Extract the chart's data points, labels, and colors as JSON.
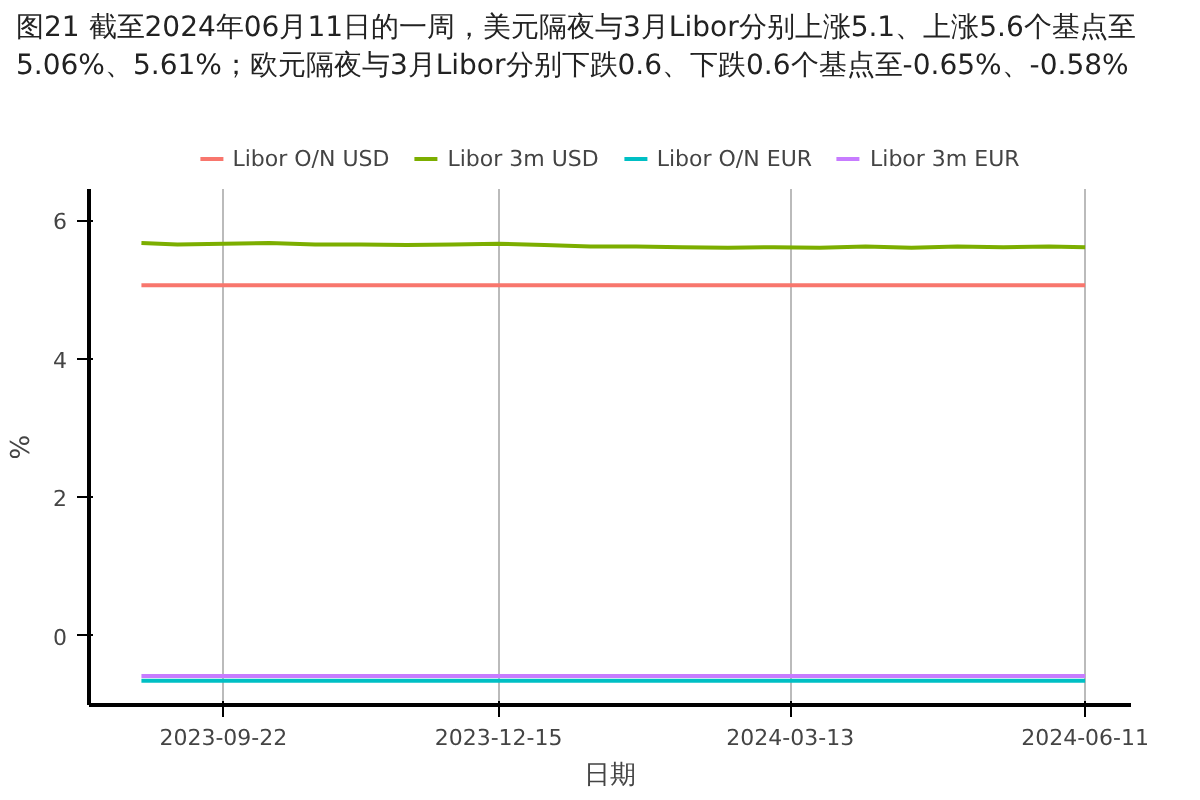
{
  "chart_data": {
    "type": "line",
    "title": "图21  截至2024年06月11日的一周，美元隔夜与3月Libor分别上涨5.1、上涨5.6个基点至5.06%、5.61%；欧元隔夜与3月Libor分别下跌0.6、下跌0.6个基点至-0.65%、-0.58%",
    "xlabel": "日期",
    "ylabel": "%",
    "x": [
      "2023-08-28",
      "2023-09-08",
      "2023-09-22",
      "2023-10-06",
      "2023-10-20",
      "2023-11-03",
      "2023-11-17",
      "2023-12-01",
      "2023-12-15",
      "2023-12-29",
      "2024-01-12",
      "2024-01-26",
      "2024-02-09",
      "2024-02-23",
      "2024-03-08",
      "2024-03-22",
      "2024-04-05",
      "2024-04-19",
      "2024-05-03",
      "2024-05-17",
      "2024-05-31",
      "2024-06-11"
    ],
    "series": [
      {
        "name": "Libor O/N USD",
        "color": "#f8766d",
        "values": [
          5.06,
          5.06,
          5.06,
          5.06,
          5.06,
          5.06,
          5.06,
          5.06,
          5.06,
          5.06,
          5.06,
          5.06,
          5.06,
          5.06,
          5.06,
          5.06,
          5.06,
          5.06,
          5.06,
          5.06,
          5.06,
          5.06
        ]
      },
      {
        "name": "Libor 3m USD",
        "color": "#7cae00",
        "values": [
          5.67,
          5.65,
          5.66,
          5.67,
          5.65,
          5.65,
          5.64,
          5.65,
          5.66,
          5.64,
          5.62,
          5.62,
          5.61,
          5.6,
          5.61,
          5.6,
          5.62,
          5.6,
          5.62,
          5.61,
          5.62,
          5.61
        ]
      },
      {
        "name": "Libor O/N EUR",
        "color": "#00bfc4",
        "values": [
          -0.65,
          -0.65,
          -0.65,
          -0.65,
          -0.65,
          -0.65,
          -0.65,
          -0.65,
          -0.65,
          -0.65,
          -0.65,
          -0.65,
          -0.65,
          -0.65,
          -0.65,
          -0.65,
          -0.65,
          -0.65,
          -0.65,
          -0.65,
          -0.65,
          -0.65
        ]
      },
      {
        "name": "Libor 3m EUR",
        "color": "#c77cff",
        "values": [
          -0.58,
          -0.58,
          -0.58,
          -0.58,
          -0.58,
          -0.58,
          -0.58,
          -0.58,
          -0.58,
          -0.58,
          -0.58,
          -0.58,
          -0.58,
          -0.58,
          -0.58,
          -0.58,
          -0.58,
          -0.58,
          -0.58,
          -0.58,
          -0.58,
          -0.58
        ]
      }
    ],
    "xlim": [
      "2023-08-12",
      "2024-06-25"
    ],
    "xticks": [
      "2023-09-22",
      "2023-12-15",
      "2024-03-13",
      "2024-06-11"
    ],
    "ylim": [
      -1,
      6.45
    ],
    "yticks": [
      0,
      2,
      4,
      6
    ],
    "grid": "x",
    "legend": "top",
    "marker": "none",
    "line_style": "solid"
  }
}
